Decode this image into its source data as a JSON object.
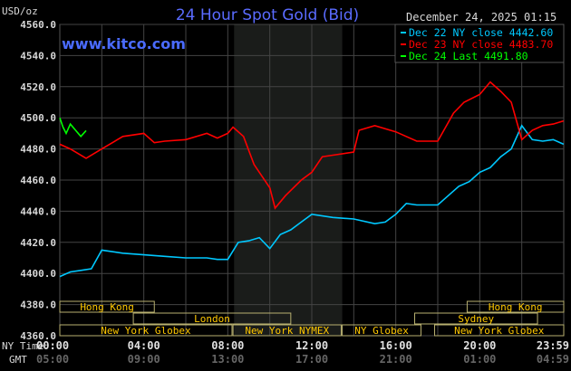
{
  "chart_data": {
    "type": "line",
    "title": "24 Hour Spot Gold (Bid)",
    "website": "www.kitco.com",
    "timestamp": "December 24, 2025 01:15",
    "ylabel": "USD/oz",
    "ylim": [
      4360,
      4560
    ],
    "yticks": [
      "4560.0",
      "4540.0",
      "4520.0",
      "4500.0",
      "4480.0",
      "4460.0",
      "4440.0",
      "4420.0",
      "4400.0",
      "4380.0",
      "4360.0"
    ],
    "xlim_hours": [
      0,
      24
    ],
    "x_axis_rows": [
      {
        "label": "NY Time",
        "ticks": [
          "00:00",
          "04:00",
          "08:00",
          "12:00",
          "16:00",
          "20:00",
          "23:59"
        ]
      },
      {
        "label": "GMT",
        "ticks": [
          "05:00",
          "09:00",
          "13:00",
          "17:00",
          "21:00",
          "01:00",
          "04:59"
        ]
      }
    ],
    "grid": true,
    "legend_position": "top-right",
    "shaded_session_hours": [
      8.3,
      13.45
    ],
    "series": [
      {
        "name": "Dec 22 NY close 4442.60",
        "color": "#00c8ff",
        "x": [
          0,
          0.5,
          1,
          1.5,
          2,
          3,
          4,
          5,
          6,
          7,
          7.5,
          8,
          8.5,
          9,
          9.5,
          10,
          10.5,
          11,
          11.5,
          12,
          13,
          14,
          15,
          15.5,
          16,
          16.5,
          17,
          18,
          18.5,
          19,
          19.5,
          20,
          20.5,
          21,
          21.5,
          22,
          22.5,
          23,
          23.5,
          23.99
        ],
        "values": [
          4398,
          4401,
          4402,
          4403,
          4415,
          4413,
          4412,
          4411,
          4410,
          4410,
          4409,
          4409,
          4420,
          4421,
          4423,
          4416,
          4425,
          4428,
          4433,
          4438,
          4436,
          4435,
          4432,
          4433,
          4438,
          4445,
          4444,
          4444,
          4450,
          4456,
          4459,
          4465,
          4468,
          4475,
          4480,
          4495,
          4486,
          4485,
          4486,
          4483
        ]
      },
      {
        "name": "Dec 23 NY close 4483.70",
        "color": "#ff0000",
        "x": [
          0,
          0.5,
          1.25,
          2,
          3,
          4,
          4.5,
          5,
          6,
          7,
          7.5,
          8,
          8.25,
          8.75,
          9.25,
          10,
          10.25,
          10.75,
          11.5,
          12,
          12.5,
          13,
          14,
          14.25,
          15,
          16,
          17,
          18,
          18.75,
          19.25,
          20,
          20.5,
          21,
          21.5,
          22,
          22.5,
          23,
          23.5,
          23.99
        ],
        "values": [
          4483,
          4480,
          4474,
          4480,
          4488,
          4490,
          4484,
          4485,
          4486,
          4490,
          4487,
          4490,
          4494,
          4488,
          4470,
          4455,
          4442,
          4450,
          4460,
          4465,
          4475,
          4476,
          4478,
          4492,
          4495,
          4491,
          4485,
          4485,
          4503,
          4510,
          4515,
          4523,
          4517,
          4510,
          4486,
          4492,
          4495,
          4496,
          4498
        ]
      },
      {
        "name": "Dec 24 Last 4491.80",
        "color": "#00ff00",
        "x": [
          0,
          0.15,
          0.3,
          0.5,
          0.75,
          1,
          1.25
        ],
        "values": [
          4500,
          4494,
          4490,
          4496,
          4492,
          4488,
          4491.8
        ]
      }
    ],
    "sessions": [
      {
        "label": "Hong Kong",
        "row": 0,
        "start": 0,
        "end": 4.5
      },
      {
        "label": "Hong Kong",
        "row": 0,
        "start": 19.4,
        "end": 24
      },
      {
        "label": "London",
        "row": 1,
        "start": 3.5,
        "end": 11
      },
      {
        "label": "Sydney",
        "row": 1,
        "start": 16.9,
        "end": 22.75
      },
      {
        "label": "New York Globex",
        "row": 2,
        "start": 0,
        "end": 8.2
      },
      {
        "label": "New York NYMEX",
        "row": 2,
        "start": 8.25,
        "end": 13.4
      },
      {
        "label": "NY Globex",
        "row": 2,
        "start": 13.45,
        "end": 17.2
      },
      {
        "label": "New York Globex",
        "row": 2,
        "start": 17.85,
        "end": 24
      }
    ]
  }
}
